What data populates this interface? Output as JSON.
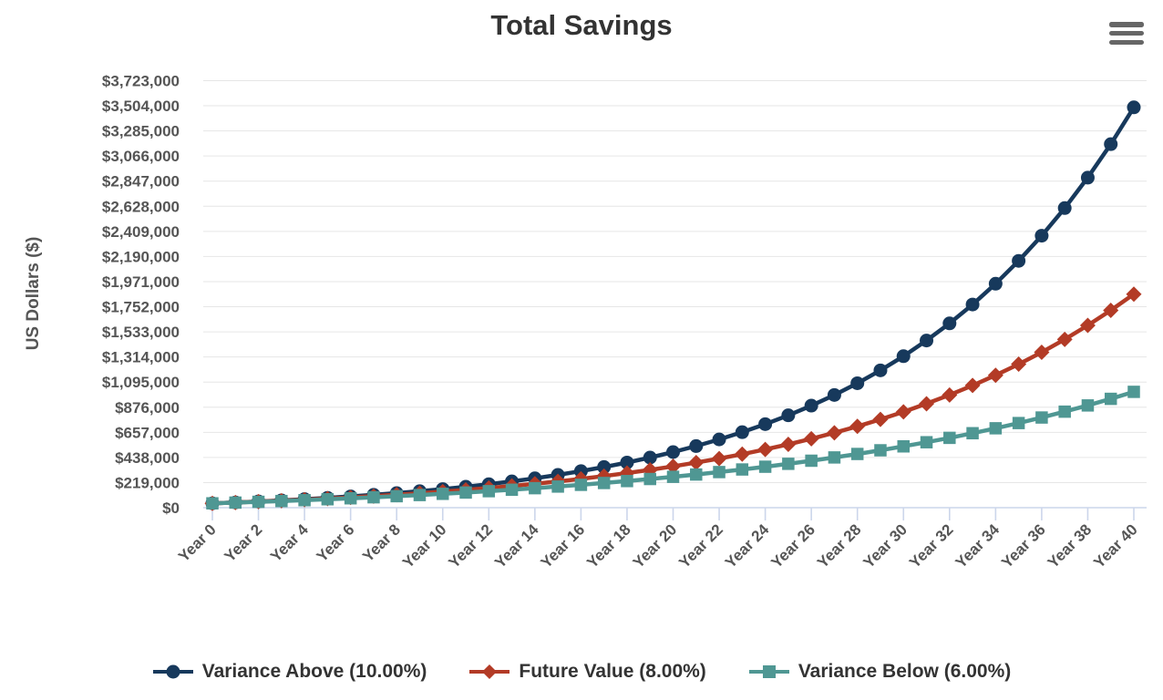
{
  "chart_data": {
    "type": "line",
    "title": "Total Savings",
    "xlabel": "",
    "ylabel": "US Dollars ($)",
    "grid": "horizontal",
    "legend_position": "bottom",
    "ylim": [
      0,
      3723000
    ],
    "y_ticks": [
      0,
      219000,
      438000,
      657000,
      876000,
      1095000,
      1314000,
      1533000,
      1752000,
      1971000,
      2190000,
      2409000,
      2628000,
      2847000,
      3066000,
      3285000,
      3504000,
      3723000
    ],
    "y_tick_labels": [
      "$0",
      "$219,000",
      "$438,000",
      "$657,000",
      "$876,000",
      "$1,095,000",
      "$1,314,000",
      "$1,533,000",
      "$1,752,000",
      "$1,971,000",
      "$2,190,000",
      "$2,409,000",
      "$2,628,000",
      "$2,847,000",
      "$3,066,000",
      "$3,285,000",
      "$3,504,000",
      "$3,723,000"
    ],
    "x": [
      0,
      1,
      2,
      3,
      4,
      5,
      6,
      7,
      8,
      9,
      10,
      11,
      12,
      13,
      14,
      15,
      16,
      17,
      18,
      19,
      20,
      21,
      22,
      23,
      24,
      25,
      26,
      27,
      28,
      29,
      30,
      31,
      32,
      33,
      34,
      35,
      36,
      37,
      38,
      39,
      40
    ],
    "x_tick_labels": [
      "Year 0",
      "Year 2",
      "Year 4",
      "Year 6",
      "Year 8",
      "Year 10",
      "Year 12",
      "Year 14",
      "Year 16",
      "Year 18",
      "Year 20",
      "Year 22",
      "Year 24",
      "Year 26",
      "Year 28",
      "Year 30",
      "Year 32",
      "Year 34",
      "Year 36",
      "Year 38",
      "Year 40"
    ],
    "series": [
      {
        "name": "Variance Above (10.00%)",
        "color": "#17395c",
        "marker": "circle",
        "values": [
          38000,
          45800,
          54380,
          63818,
          74200,
          85620,
          98182,
          112000,
          127200,
          143920,
          162312,
          182543,
          204797,
          229277,
          256205,
          285825,
          318408,
          354249,
          393674,
          437041,
          484745,
          537220,
          594941,
          658436,
          728279,
          805107,
          889618,
          982580,
          1084837,
          1197321,
          1321053,
          1457159,
          1606875,
          1771562,
          1952718,
          2151990,
          2371189,
          2612308,
          2877539,
          3169293,
          3490222
        ]
      },
      {
        "name": "Future Value (8.00%)",
        "color": "#b33b26",
        "marker": "diamond",
        "values": [
          38000,
          45040,
          52643,
          60855,
          69723,
          79301,
          89645,
          100817,
          112882,
          125912,
          139985,
          155184,
          171599,
          189327,
          208473,
          229151,
          251483,
          275602,
          301650,
          329782,
          360164,
          392977,
          428416,
          466689,
          508024,
          552666,
          600879,
          652949,
          709185,
          769920,
          835514,
          906355,
          982863,
          1065492,
          1154732,
          1251110,
          1355199,
          1467615,
          1589024,
          1720146,
          1861758
        ]
      },
      {
        "name": "Variance Below (6.00%)",
        "color": "#4f9793",
        "marker": "square",
        "values": [
          38000,
          44280,
          50937,
          57993,
          65473,
          73401,
          81805,
          90713,
          100156,
          110166,
          120775,
          132022,
          143943,
          156580,
          169975,
          184173,
          199224,
          215177,
          232088,
          250013,
          269014,
          289154,
          310504,
          333134,
          357122,
          382549,
          409502,
          438072,
          468357,
          500458,
          534485,
          570555,
          608788,
          649315,
          692274,
          737810,
          786079,
          837244,
          891478,
          948967,
          1009905
        ]
      }
    ],
    "colors": {
      "title_text": "#333333",
      "axis_label_text": "#555555",
      "grid_line": "#e6e6e6",
      "axis_tick": "#ccd6eb",
      "menu_icon": "#666666"
    }
  }
}
